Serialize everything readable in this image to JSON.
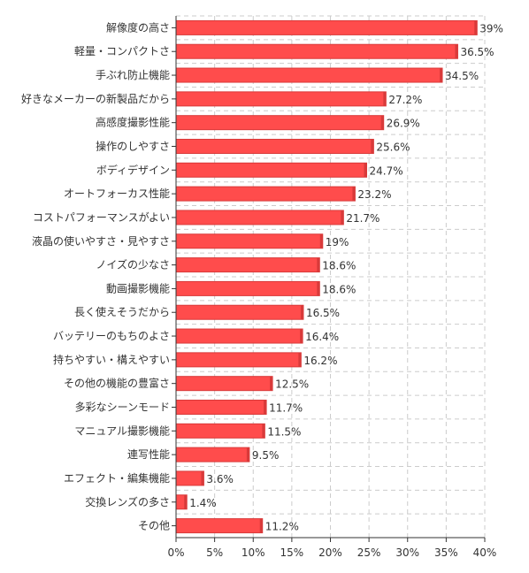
{
  "chart_data": {
    "type": "bar",
    "orientation": "horizontal",
    "categories": [
      "解像度の高さ",
      "軽量・コンパクトさ",
      "手ぶれ防止機能",
      "好きなメーカーの新製品だから",
      "高感度撮影性能",
      "操作のしやすさ",
      "ボディデザイン",
      "オートフォーカス性能",
      "コストパフォーマンスがよい",
      "液晶の使いやすさ・見やすさ",
      "ノイズの少なさ",
      "動画撮影機能",
      "長く使えそうだから",
      "バッテリーのもちのよさ",
      "持ちやすい・構えやすい",
      "その他の機能の豊富さ",
      "多彩なシーンモード",
      "マニュアル撮影機能",
      "連写性能",
      "エフェクト・編集機能",
      "交換レンズの多さ",
      "その他"
    ],
    "values": [
      39,
      36.5,
      34.5,
      27.2,
      26.9,
      25.6,
      24.7,
      23.2,
      21.7,
      19,
      18.6,
      18.6,
      16.5,
      16.4,
      16.2,
      12.5,
      11.7,
      11.5,
      9.5,
      3.6,
      1.4,
      11.2
    ],
    "value_labels": [
      "39%",
      "36.5%",
      "34.5%",
      "27.2%",
      "26.9%",
      "25.6%",
      "24.7%",
      "23.2%",
      "21.7%",
      "19%",
      "18.6%",
      "18.6%",
      "16.5%",
      "16.4%",
      "16.2%",
      "12.5%",
      "11.7%",
      "11.5%",
      "9.5%",
      "3.6%",
      "1.4%",
      "11.2%"
    ],
    "xticks": [
      "0%",
      "5%",
      "10%",
      "15%",
      "20%",
      "25%",
      "30%",
      "35%",
      "40%"
    ],
    "xlim": [
      0,
      40
    ],
    "grid": true,
    "bar_color": "#ff4c4c",
    "bar_edge_color": "#d93a3a"
  }
}
